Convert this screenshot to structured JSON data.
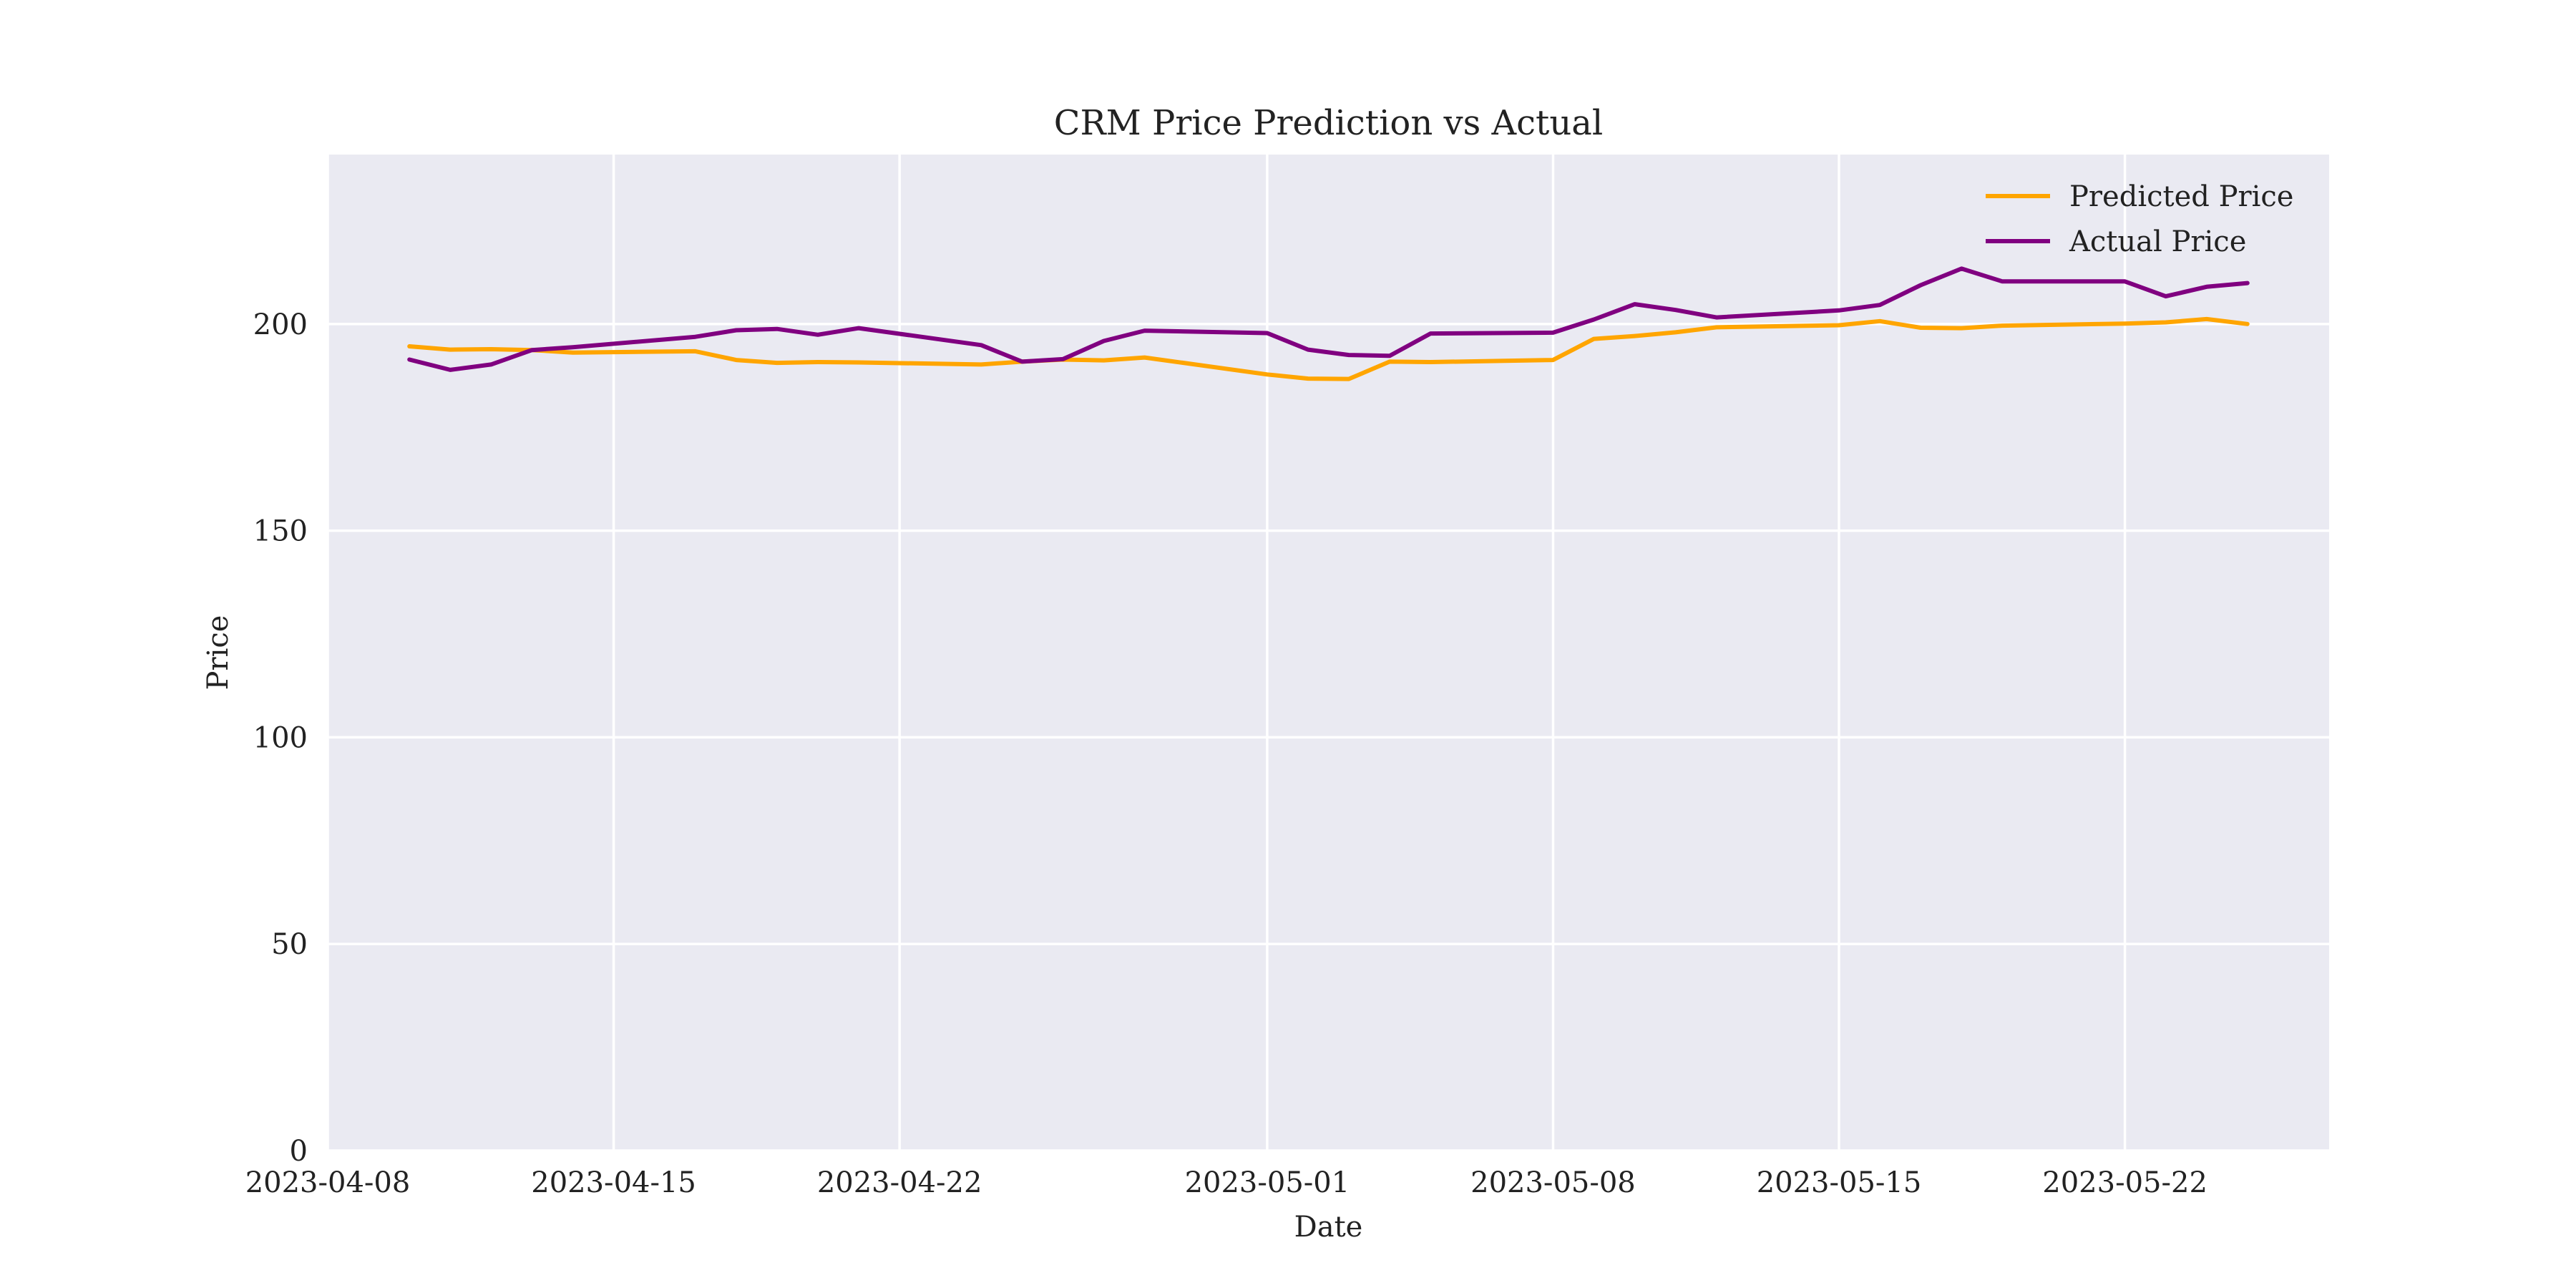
{
  "chart_data": {
    "type": "line",
    "title": "CRM Price Prediction vs Actual",
    "xlabel": "Date",
    "ylabel": "Price",
    "x_ticks": [
      "2023-04-08",
      "2023-04-15",
      "2023-04-22",
      "2023-05-01",
      "2023-05-08",
      "2023-05-15",
      "2023-05-22"
    ],
    "y_ticks": [
      "0",
      "50",
      "100",
      "150",
      "200"
    ],
    "xlim": [
      "2023-04-08",
      "2023-05-27"
    ],
    "ylim": [
      0,
      241
    ],
    "grid": true,
    "legend_position": "top-right",
    "x": [
      "2023-04-10",
      "2023-04-11",
      "2023-04-12",
      "2023-04-13",
      "2023-04-14",
      "2023-04-17",
      "2023-04-18",
      "2023-04-19",
      "2023-04-20",
      "2023-04-21",
      "2023-04-24",
      "2023-04-25",
      "2023-04-26",
      "2023-04-27",
      "2023-04-28",
      "2023-05-01",
      "2023-05-02",
      "2023-05-03",
      "2023-05-04",
      "2023-05-05",
      "2023-05-08",
      "2023-05-09",
      "2023-05-10",
      "2023-05-11",
      "2023-05-12",
      "2023-05-15",
      "2023-05-16",
      "2023-05-17",
      "2023-05-18",
      "2023-05-19",
      "2023-05-22",
      "2023-05-23",
      "2023-05-24",
      "2023-05-25"
    ],
    "series": [
      {
        "name": "Predicted Price",
        "color": "#ffa500",
        "values": [
          194.6,
          193.8,
          193.9,
          193.7,
          193.1,
          193.4,
          191.3,
          190.6,
          190.8,
          190.7,
          190.2,
          190.9,
          191.4,
          191.2,
          191.9,
          187.8,
          186.8,
          186.7,
          190.9,
          190.8,
          191.3,
          196.4,
          197.1,
          198.0,
          199.2,
          199.7,
          200.7,
          199.1,
          199.0,
          199.6,
          200.1,
          200.4,
          201.2,
          200.0
        ]
      },
      {
        "name": "Actual Price",
        "color": "#800080",
        "values": [
          191.4,
          188.9,
          190.2,
          193.7,
          194.4,
          196.9,
          198.5,
          198.8,
          197.4,
          199.0,
          194.9,
          190.9,
          191.5,
          195.9,
          198.4,
          197.8,
          193.8,
          192.5,
          192.3,
          197.7,
          197.9,
          201.1,
          204.8,
          203.4,
          201.6,
          203.3,
          204.6,
          209.4,
          213.4,
          210.3,
          210.3,
          206.7,
          209.0,
          209.9
        ]
      }
    ]
  }
}
